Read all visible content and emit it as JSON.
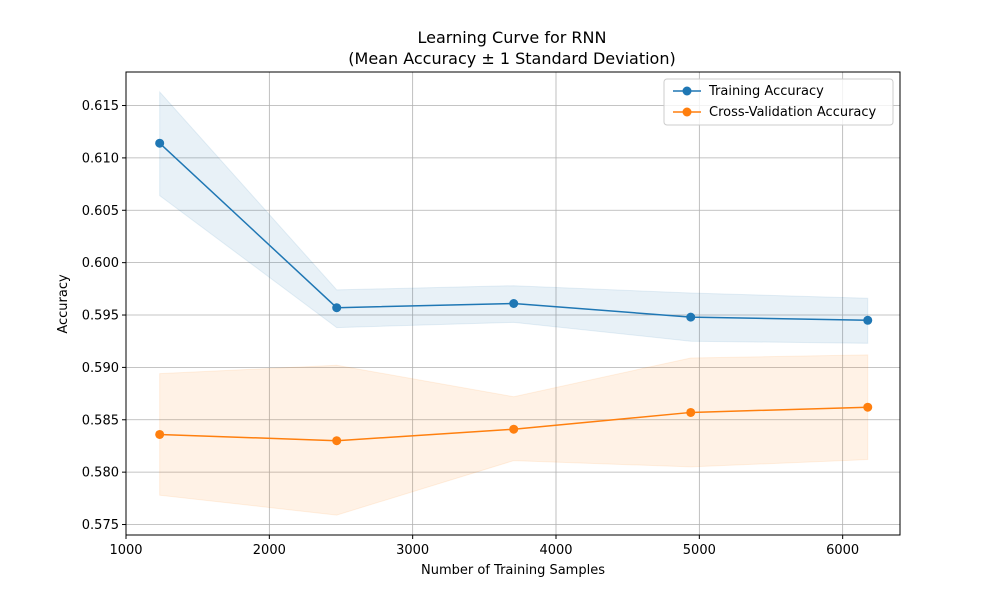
{
  "chart_data": {
    "type": "line",
    "title": "Learning Curve for RNN",
    "subtitle": "(Mean Accuracy ± 1 Standard Deviation)",
    "xlabel": "Number of Training Samples",
    "ylabel": "Accuracy",
    "xlim": [
      1000,
      6400
    ],
    "ylim": [
      0.574,
      0.6182
    ],
    "xticks": [
      1000,
      2000,
      3000,
      4000,
      5000,
      6000
    ],
    "yticks": [
      0.575,
      0.58,
      0.585,
      0.59,
      0.595,
      0.6,
      0.605,
      0.61,
      0.615
    ],
    "ytick_labels": [
      "0.575",
      "0.580",
      "0.585",
      "0.590",
      "0.595",
      "0.600",
      "0.605",
      "0.610",
      "0.615"
    ],
    "grid": true,
    "legend_position": "top-right",
    "x": [
      1235,
      2470,
      3705,
      4940,
      6175
    ],
    "series": [
      {
        "name": "Training Accuracy",
        "color": "#1f77b4",
        "band_color": "#1f77b4",
        "values": [
          0.6114,
          0.5957,
          0.5961,
          0.5948,
          0.5945
        ],
        "upper": [
          0.6163,
          0.5974,
          0.5978,
          0.5971,
          0.5966
        ],
        "lower": [
          0.6064,
          0.5938,
          0.5943,
          0.5925,
          0.5923
        ]
      },
      {
        "name": "Cross-Validation Accuracy",
        "color": "#ff7f0e",
        "band_color": "#ff7f0e",
        "values": [
          0.5836,
          0.583,
          0.5841,
          0.5857,
          0.5862
        ],
        "upper": [
          0.5894,
          0.5902,
          0.5872,
          0.5909,
          0.5912
        ],
        "lower": [
          0.5778,
          0.5759,
          0.5811,
          0.5805,
          0.5812
        ]
      }
    ]
  }
}
